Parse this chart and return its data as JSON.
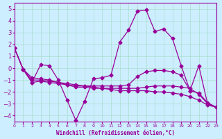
{
  "xlabel": "Windchill (Refroidissement éolien,°C)",
  "bg_color": "#cceeff",
  "grid_color": "#aaddcc",
  "line_color": "#990099",
  "xlim": [
    0,
    23
  ],
  "ylim": [
    -4.5,
    5.5
  ],
  "yticks": [
    -4,
    -3,
    -2,
    -1,
    0,
    1,
    2,
    3,
    4,
    5
  ],
  "xticks": [
    0,
    1,
    2,
    3,
    4,
    5,
    6,
    7,
    8,
    9,
    10,
    11,
    12,
    13,
    14,
    15,
    16,
    17,
    18,
    19,
    20,
    21,
    22,
    23
  ],
  "series": [
    [
      1.7,
      -0.1,
      -1.2,
      0.3,
      0.2,
      -1.0,
      -2.7,
      -4.4,
      -2.8,
      -0.9,
      -0.8,
      -0.6,
      2.2,
      3.2,
      4.8,
      4.9,
      3.1,
      3.3,
      2.5,
      0.2,
      -1.9,
      0.2,
      -3.0,
      -3.3
    ],
    [
      1.7,
      -0.1,
      -1.2,
      -1.1,
      -1.2,
      -1.3,
      -1.4,
      -1.5,
      -1.5,
      -1.5,
      -1.5,
      -1.5,
      -1.5,
      -1.4,
      -0.7,
      -0.3,
      -0.2,
      -0.2,
      -0.3,
      -0.6,
      -1.9,
      -2.1,
      -2.9,
      -3.3
    ],
    [
      1.7,
      -0.1,
      -1.0,
      -1.0,
      -1.1,
      -1.2,
      -1.4,
      -1.6,
      -1.6,
      -1.7,
      -1.7,
      -1.7,
      -1.7,
      -1.7,
      -1.7,
      -1.6,
      -1.5,
      -1.5,
      -1.5,
      -1.6,
      -1.7,
      -2.2,
      -3.0,
      -3.3
    ],
    [
      1.7,
      -0.1,
      -0.8,
      -0.9,
      -1.0,
      -1.2,
      -1.3,
      -1.4,
      -1.5,
      -1.6,
      -1.7,
      -1.8,
      -1.9,
      -1.9,
      -1.9,
      -1.9,
      -2.0,
      -2.0,
      -2.1,
      -2.2,
      -2.4,
      -2.7,
      -3.1,
      -3.3
    ]
  ]
}
